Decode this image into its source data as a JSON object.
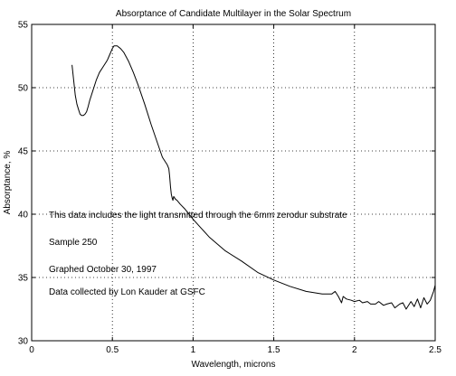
{
  "chart_data": {
    "type": "line",
    "title": "Absorptance of Candidate Multilayer in the Solar Spectrum",
    "xlabel": "Wavelength, microns",
    "ylabel": "Absorptance, %",
    "xlim": [
      0,
      2.5
    ],
    "ylim": [
      30,
      55
    ],
    "x_ticks": [
      0,
      0.5,
      1,
      1.5,
      2,
      2.5
    ],
    "x_tick_labels": [
      "0",
      "0.5",
      "1",
      "1.5",
      "2",
      "2.5"
    ],
    "y_ticks": [
      30,
      35,
      40,
      45,
      50,
      55
    ],
    "y_tick_labels": [
      "30",
      "35",
      "40",
      "45",
      "50",
      "55"
    ],
    "grid": true,
    "line_color": "#000000",
    "annotations": [
      "This data includes the light transmitted through the 6mm zerodur substrate",
      "Sample 250",
      "Graphed October 30, 1997",
      "Data collected by Lon Kauder at GSFC"
    ],
    "series": [
      {
        "x": [
          0.25,
          0.26,
          0.27,
          0.28,
          0.29,
          0.3,
          0.31,
          0.32,
          0.33,
          0.34,
          0.35,
          0.36,
          0.38,
          0.4,
          0.42,
          0.44,
          0.46,
          0.47,
          0.48,
          0.49,
          0.5,
          0.51,
          0.52,
          0.53,
          0.54,
          0.55,
          0.57,
          0.6,
          0.63,
          0.66,
          0.7,
          0.74,
          0.78,
          0.81,
          0.84,
          0.85,
          0.855,
          0.86,
          0.865,
          0.87,
          0.875,
          0.88,
          0.885,
          0.89,
          0.9,
          0.92,
          0.95,
          1.0,
          1.05,
          1.1,
          1.2,
          1.3,
          1.4,
          1.5,
          1.6,
          1.7,
          1.8,
          1.86,
          1.88,
          1.9,
          1.92,
          1.93,
          1.95,
          1.98,
          2.0,
          2.03,
          2.05,
          2.08,
          2.1,
          2.13,
          2.15,
          2.18,
          2.2,
          2.23,
          2.25,
          2.28,
          2.3,
          2.32,
          2.35,
          2.37,
          2.39,
          2.41,
          2.43,
          2.45,
          2.47,
          2.49,
          2.5
        ],
        "y": [
          51.8,
          50.6,
          49.4,
          48.7,
          48.3,
          47.9,
          47.8,
          47.8,
          47.9,
          48.1,
          48.5,
          49.0,
          49.8,
          50.6,
          51.2,
          51.6,
          52.0,
          52.2,
          52.5,
          52.8,
          53.1,
          53.3,
          53.3,
          53.3,
          53.2,
          53.1,
          52.8,
          52.1,
          51.2,
          50.2,
          48.7,
          47.1,
          45.6,
          44.5,
          43.9,
          43.6,
          43.0,
          42.2,
          41.6,
          41.3,
          41.1,
          41.4,
          41.3,
          41.2,
          41.1,
          40.8,
          40.4,
          39.6,
          38.9,
          38.2,
          37.1,
          36.3,
          35.4,
          34.8,
          34.3,
          33.9,
          33.7,
          33.7,
          33.9,
          33.5,
          33.0,
          33.5,
          33.3,
          33.2,
          33.1,
          33.2,
          33.0,
          33.1,
          32.9,
          32.9,
          33.1,
          32.8,
          32.9,
          33.0,
          32.6,
          32.9,
          33.0,
          32.5,
          33.1,
          32.7,
          33.3,
          32.6,
          33.4,
          32.9,
          33.2,
          33.9,
          34.4
        ]
      }
    ]
  }
}
